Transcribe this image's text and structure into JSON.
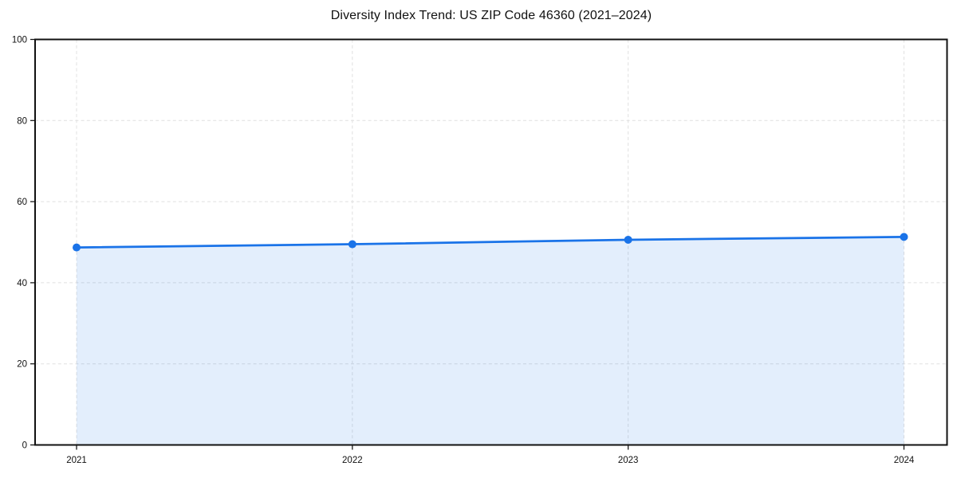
{
  "chart_data": {
    "type": "area",
    "title": "Diversity Index Trend: US ZIP Code 46360 (2021–2024)",
    "categories": [
      "2021",
      "2022",
      "2023",
      "2024"
    ],
    "series": [
      {
        "name": "Diversity Index",
        "values": [
          48.7,
          49.5,
          50.6,
          51.3
        ]
      }
    ],
    "xlabel": "",
    "ylabel": "",
    "ylim": [
      0,
      100
    ],
    "yticks": [
      0,
      20,
      40,
      60,
      80,
      100
    ],
    "grid": true,
    "grid_style": "dashed",
    "legend_position": "none",
    "marker": "circle",
    "colors": {
      "line": "#1a73e8",
      "fill": "rgba(26,115,232,0.12)",
      "grid": "#e0e0e0",
      "axis": "#111111",
      "text": "#111111",
      "background": "#ffffff"
    }
  }
}
